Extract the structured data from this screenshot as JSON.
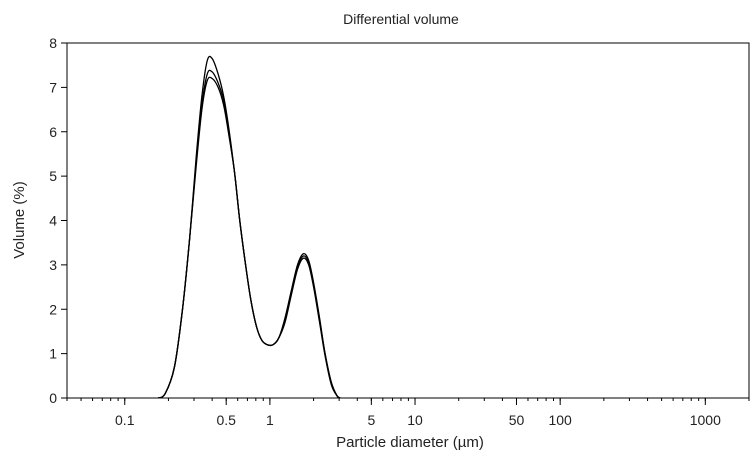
{
  "chart_data": {
    "type": "line",
    "title": "Differential volume",
    "xlabel": "Particle diameter (µm)",
    "ylabel": "Volume (%)",
    "x_scale": "log",
    "xlim": [
      0.04,
      2000
    ],
    "ylim": [
      0,
      8
    ],
    "x_tick_labels": [
      "0.1",
      "0.5",
      "1",
      "5",
      "10",
      "50",
      "100",
      "1000"
    ],
    "x_tick_values": [
      0.1,
      0.5,
      1,
      5,
      10,
      50,
      100,
      1000
    ],
    "y_tick_labels": [
      "0",
      "1",
      "2",
      "3",
      "4",
      "5",
      "6",
      "7",
      "8"
    ],
    "y_tick_values": [
      0,
      1,
      2,
      3,
      4,
      5,
      6,
      7,
      8
    ],
    "grid": false,
    "line_color": "#000000",
    "series": [
      {
        "x": [
          0.17,
          0.19,
          0.22,
          0.25,
          0.28,
          0.31,
          0.34,
          0.37,
          0.4,
          0.44,
          0.48,
          0.52,
          0.57,
          0.62,
          0.68,
          0.74,
          0.81,
          0.88,
          0.96,
          1.05,
          1.15,
          1.27,
          1.4,
          1.55,
          1.7,
          1.85,
          2.0,
          2.2,
          2.4,
          2.65,
          2.9,
          3.05
        ],
        "y": [
          0.0,
          0.1,
          0.7,
          2.0,
          3.6,
          5.4,
          6.8,
          7.6,
          7.65,
          7.3,
          6.8,
          6.1,
          5.1,
          4.0,
          3.0,
          2.2,
          1.6,
          1.3,
          1.2,
          1.2,
          1.35,
          1.8,
          2.4,
          3.0,
          3.25,
          3.1,
          2.6,
          1.8,
          1.0,
          0.35,
          0.05,
          0.0
        ]
      },
      {
        "x": [
          0.17,
          0.19,
          0.22,
          0.25,
          0.28,
          0.31,
          0.34,
          0.37,
          0.4,
          0.44,
          0.48,
          0.52,
          0.57,
          0.62,
          0.68,
          0.74,
          0.81,
          0.88,
          0.96,
          1.05,
          1.15,
          1.27,
          1.4,
          1.55,
          1.7,
          1.85,
          2.0,
          2.2,
          2.4,
          2.65,
          2.9,
          3.05
        ],
        "y": [
          0.0,
          0.1,
          0.7,
          2.0,
          3.6,
          5.3,
          6.6,
          7.3,
          7.35,
          7.1,
          6.7,
          6.0,
          5.1,
          4.0,
          3.0,
          2.2,
          1.6,
          1.3,
          1.2,
          1.2,
          1.35,
          1.75,
          2.35,
          2.95,
          3.2,
          3.05,
          2.55,
          1.75,
          1.0,
          0.35,
          0.05,
          0.0
        ]
      },
      {
        "x": [
          0.17,
          0.19,
          0.22,
          0.25,
          0.28,
          0.31,
          0.34,
          0.37,
          0.4,
          0.44,
          0.48,
          0.52,
          0.57,
          0.62,
          0.68,
          0.74,
          0.81,
          0.88,
          0.96,
          1.05,
          1.15,
          1.27,
          1.4,
          1.55,
          1.7,
          1.85,
          2.0,
          2.2,
          2.4,
          2.65,
          2.9,
          3.05
        ],
        "y": [
          0.0,
          0.1,
          0.7,
          2.0,
          3.6,
          5.2,
          6.5,
          7.15,
          7.2,
          7.0,
          6.6,
          5.95,
          5.1,
          4.0,
          3.0,
          2.2,
          1.6,
          1.3,
          1.2,
          1.2,
          1.35,
          1.7,
          2.3,
          2.9,
          3.15,
          3.0,
          2.5,
          1.7,
          0.95,
          0.3,
          0.05,
          0.0
        ]
      }
    ]
  }
}
